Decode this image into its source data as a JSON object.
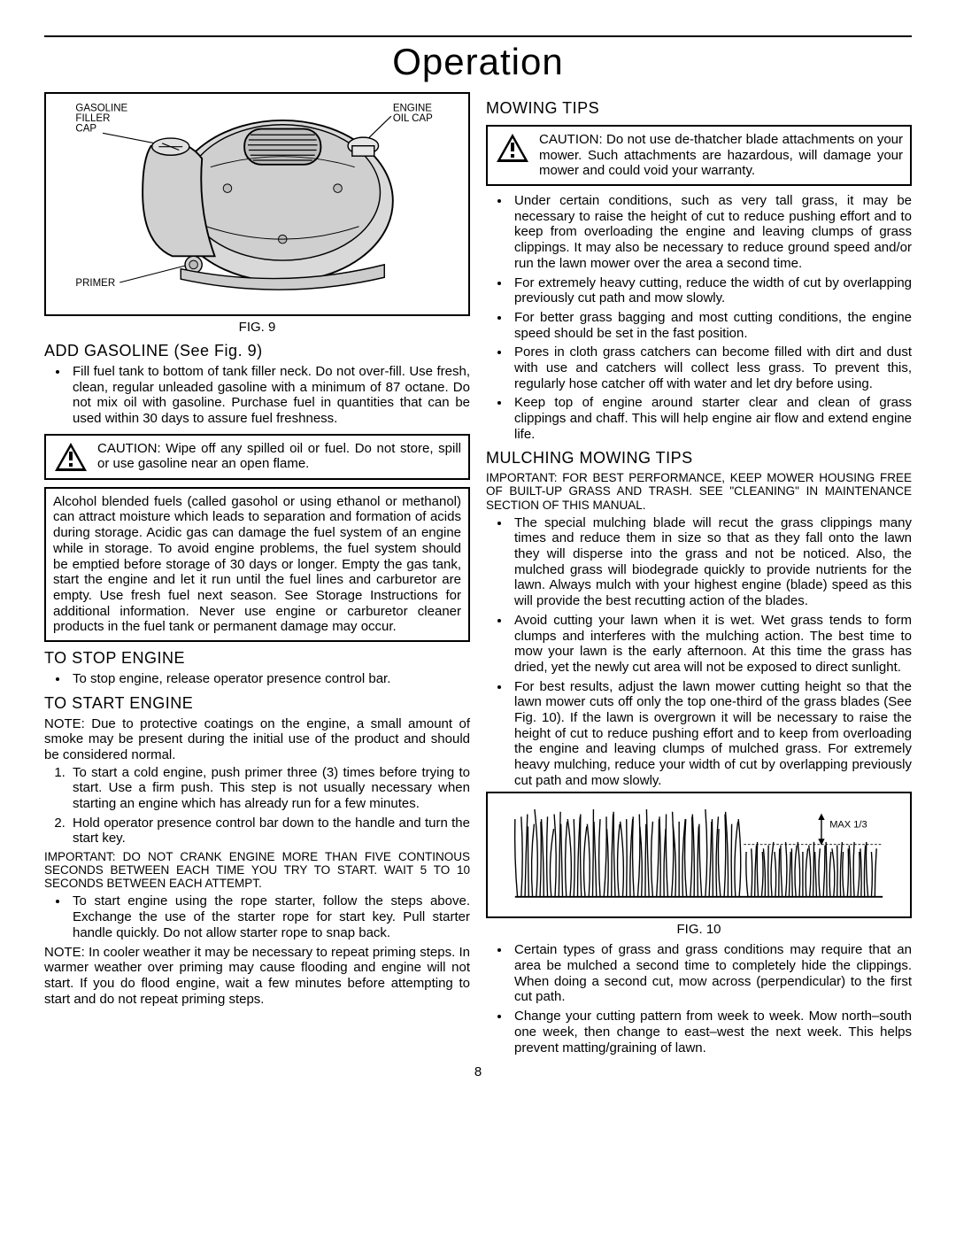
{
  "page": {
    "title": "Operation",
    "number": "8"
  },
  "fig9": {
    "caption": "FIG. 9",
    "labels": {
      "gasoline_filler_cap": "GASOLINE\nFILLER\nCAP",
      "engine_oil_cap": "ENGINE\nOIL CAP",
      "primer": "PRIMER"
    }
  },
  "add_gasoline": {
    "heading": "ADD GASOLINE (See Fig. 9)",
    "bullet": "Fill fuel tank to bottom of tank filler neck.  Do not over-fill.  Use fresh, clean, regular unleaded gasoline with a minimum of 87 octane.  Do not mix oil with gasoline. Purchase fuel in quantities that can be used within 30 days to assure fuel freshness.",
    "caution": "CAUTION:  Wipe off any spilled oil or fuel.  Do not store, spill or use gasoline near an open flame.",
    "info": "Alcohol blended fuels (called gasohol or using ethanol or methanol) can attract moisture which leads to separation and formation of acids during storage.  Acidic gas can damage the fuel system of an engine while in storage.  To avoid engine problems, the fuel system should be emptied before storage of 30 days or longer. Empty the gas tank, start the engine and let it run until the fuel lines and carburetor are empty.  Use fresh fuel next season.  See Storage Instructions for additional information.  Never use engine or carburetor cleaner products in the fuel tank or permanent damage may occur."
  },
  "stop_engine": {
    "heading": "TO STOP ENGINE",
    "bullet": "To stop engine, release operator presence control bar."
  },
  "start_engine": {
    "heading": "TO START ENGINE",
    "note": "NOTE: Due to protective coatings on the engine, a small amount of smoke may be present during the initial use of the product and should be considered normal.",
    "steps": [
      "To start a cold engine, push primer three (3) times before trying to start. Use a firm push. This step is not usually necessary when starting an engine which has already run for a few minutes.",
      "Hold operator presence control bar down to the handle and turn the start key."
    ],
    "important": "IMPORTANT:  DO NOT CRANK ENGINE MORE THAN FIVE CONTINOUS SECONDS BETWEEN EACH TIME YOU TRY TO START. WAIT 5 TO 10 SECONDS BETWEEN EACH ATTEMPT.",
    "bullet_after": "To start engine using the rope starter, follow the steps above. Exchange the use of the starter rope for start key. Pull starter handle quickly. Do not allow starter rope to snap back.",
    "note2": "NOTE: In cooler weather it may be necessary to repeat priming steps. In warmer weather over priming may cause flooding and engine will not start. If you do flood engine, wait a few minutes before attempting to start and do not repeat priming steps."
  },
  "mowing_tips": {
    "heading": "MOWING TIPS",
    "caution": "CAUTION: Do not use de-thatcher blade attachments on your mower.  Such attachments are hazardous, will damage your mower and could void your warranty.",
    "bullets": [
      "Under certain conditions, such as very tall grass, it may be necessary to raise the height of cut to reduce pushing effort and to keep from overloading the engine and leaving clumps of grass clippings. It may also be necessary to reduce ground speed  and/or run the lawn mower over the area a second time.",
      "For extremely heavy cutting, reduce the width of cut by overlapping previously cut path and mow slowly.",
      "For better grass bagging and most cutting conditions, the engine speed should be set in the fast position.",
      "Pores in cloth grass catchers can become filled with dirt and dust with use and catchers will collect less grass. To prevent this, regularly hose catcher off with water and let dry before using.",
      "Keep top of engine around starter clear and clean of grass clippings and chaff.  This will help engine air flow and extend engine life."
    ]
  },
  "mulching": {
    "heading": "MULCHING MOWING TIPS",
    "important": "IMPORTANT:  FOR BEST PERFORMANCE, KEEP MOWER HOUSING FREE OF BUILT-UP GRASS AND TRASH. SEE \"CLEANING\" IN MAINTENANCE SECTION OF THIS MANUAL.",
    "bullets_top": [
      "The special mulching blade will recut the grass clippings many times and reduce them in size so that as they fall onto the lawn they will disperse into the grass and not be noticed.  Also, the mulched grass will biodegrade quickly to provide nutrients for the lawn.  Always mulch with your highest engine (blade) speed as this will provide the best recutting action of the blades.",
      "Avoid cutting your lawn when it is wet.  Wet grass tends to form clumps and interferes with the mulching action. The best time to mow your lawn is the early afternoon. At this time the grass has dried, yet the newly cut area will not be exposed to direct sunlight.",
      "For best results, adjust the lawn mower cutting height so that the lawn mower cuts off only the top one-third of the grass blades (See Fig. 10).  If the lawn is overgrown it will be necessary to raise the height of cut to reduce pushing effort and to keep from overloading the engine and leaving clumps of mulched grass. For extremely heavy mulching, reduce your width of cut by overlapping previously cut path and mow slowly."
    ],
    "fig10": {
      "caption": "FIG. 10",
      "max_label": "MAX 1/3"
    },
    "bullets_bottom": [
      "Certain types of grass and grass conditions may require that an area be mulched a second time to completely hide the clippings.  When doing a second cut, mow across (perpendicular) to the first cut path.",
      "Change your cutting pattern from week to week.  Mow north–south one week, then change to east–west the next week.  This helps prevent matting/graining of lawn."
    ]
  }
}
